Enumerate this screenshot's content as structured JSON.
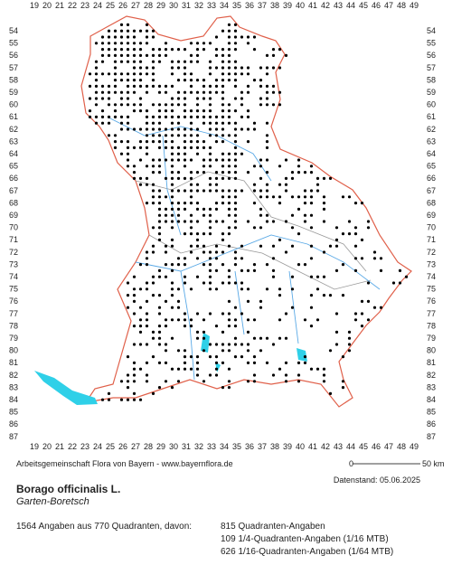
{
  "map": {
    "columns": [
      19,
      20,
      21,
      22,
      23,
      24,
      25,
      26,
      27,
      28,
      29,
      30,
      31,
      32,
      33,
      34,
      35,
      36,
      37,
      38,
      39,
      40,
      41,
      42,
      43,
      44,
      45,
      46,
      47,
      48,
      49
    ],
    "rows": [
      54,
      55,
      56,
      57,
      58,
      59,
      60,
      61,
      62,
      63,
      64,
      65,
      66,
      67,
      68,
      69,
      70,
      71,
      72,
      73,
      74,
      75,
      76,
      77,
      78,
      79,
      80,
      81,
      82,
      83,
      84,
      85,
      86,
      87
    ],
    "credit": "Arbeitsgemeinschaft Flora von Bayern - www.bayernflora.de",
    "scale_start": "0",
    "scale_end": "50 km",
    "date": "Datenstand: 05.06.2025"
  },
  "species": {
    "name": "Borago officinalis L.",
    "common_name": "Garten-Boretsch"
  },
  "summary": {
    "total": "1564 Angaben aus 770 Quadranten, davon:",
    "details": [
      "815 Quadranten-Angaben",
      "109 1/4-Quadranten-Angaben (1/16 MTB)",
      "626 1/16-Quadranten-Angaben (1/64 MTB)"
    ]
  }
}
